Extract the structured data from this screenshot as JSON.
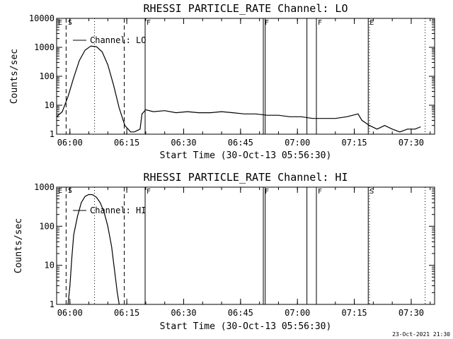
{
  "chart_data": [
    {
      "type": "line",
      "title": "RHESSI PARTICLE_RATE Channel: LO",
      "xlabel": "Start Time (30-Oct-13 05:56:30)",
      "ylabel": "Counts/sec",
      "yscale": "log",
      "xlim": [
        "05:56:30",
        "07:36:10"
      ],
      "ylim": [
        1,
        10000
      ],
      "x_ticks": [
        "06:00",
        "06:15",
        "06:30",
        "06:45",
        "07:00",
        "07:15",
        "07:30"
      ],
      "y_ticks": [
        "1",
        "10",
        "100",
        "1000",
        "10000"
      ],
      "legend": {
        "placement": "top-left",
        "entries": [
          "Channel: LO"
        ]
      },
      "grid": false,
      "series": [
        {
          "name": "Channel: LO",
          "x": [
            "05:56:30",
            "05:58:00",
            "05:59:30",
            "06:01:00",
            "06:02:30",
            "06:04:00",
            "06:05:30",
            "06:07:00",
            "06:08:30",
            "06:10:00",
            "06:11:30",
            "06:13:00",
            "06:14:30",
            "06:16:00",
            "06:17:00",
            "06:18:30",
            "06:19:00",
            "06:20:00",
            "06:22:00",
            "06:25:00",
            "06:28:00",
            "06:31:00",
            "06:34:00",
            "06:37:00",
            "06:40:00",
            "06:43:00",
            "06:46:00",
            "06:49:00",
            "06:52:00",
            "06:55:00",
            "06:58:00",
            "07:01:00",
            "07:04:00",
            "07:07:00",
            "07:10:00",
            "07:13:00",
            "07:16:00",
            "07:17:00",
            "07:19:00",
            "07:21:00",
            "07:23:00",
            "07:25:00",
            "07:27:00",
            "07:29:00",
            "07:31:00",
            "07:32:30"
          ],
          "y": [
            4,
            6,
            20,
            90,
            350,
            800,
            1100,
            1050,
            700,
            250,
            50,
            8,
            2,
            1.2,
            1.2,
            1.5,
            5,
            7,
            6,
            6.5,
            5.5,
            6,
            5.5,
            5.5,
            6,
            5.5,
            5,
            5,
            4.5,
            4.5,
            4,
            4,
            3.5,
            3.5,
            3.5,
            4,
            5,
            3,
            2,
            1.5,
            2,
            1.5,
            1.2,
            1.5,
            1.5,
            1.8
          ]
        }
      ],
      "event_marks": [
        {
          "time": "05:59:00",
          "style": "dashed",
          "label": ""
        },
        {
          "time": "06:06:30",
          "style": "dotted",
          "label": ""
        },
        {
          "time": "06:14:20",
          "style": "dashed",
          "label": ""
        },
        {
          "time": "06:19:50",
          "style": "solid",
          "label": "F"
        },
        {
          "time": "06:51:00",
          "style": "solid",
          "label": "F"
        },
        {
          "time": "06:51:30",
          "style": "solid",
          "label": ""
        },
        {
          "time": "07:02:30",
          "style": "solid",
          "label": ""
        },
        {
          "time": "07:05:00",
          "style": "solid",
          "label": "F"
        },
        {
          "time": "07:18:40",
          "style": "solid",
          "label": "E"
        },
        {
          "time": "07:19:00",
          "style": "dotted",
          "label": ""
        },
        {
          "time": "07:33:40",
          "style": "dotted",
          "label": ""
        }
      ],
      "corner_flags": [
        "E",
        "S"
      ]
    },
    {
      "type": "line",
      "title": "RHESSI PARTICLE_RATE Channel: HI",
      "xlabel": "Start Time (30-Oct-13 05:56:30)",
      "ylabel": "Counts/sec",
      "yscale": "log",
      "xlim": [
        "05:56:30",
        "07:36:10"
      ],
      "ylim": [
        1,
        1000
      ],
      "x_ticks": [
        "06:00",
        "06:15",
        "06:30",
        "06:45",
        "07:00",
        "07:15",
        "07:30"
      ],
      "y_ticks": [
        "1",
        "10",
        "100",
        "1000"
      ],
      "legend": {
        "placement": "top-left",
        "entries": [
          "Channel: HI"
        ]
      },
      "grid": false,
      "series": [
        {
          "name": "Channel: HI",
          "x": [
            "05:59:30",
            "06:00:00",
            "06:00:30",
            "06:01:00",
            "06:02:00",
            "06:03:00",
            "06:04:00",
            "06:05:00",
            "06:06:00",
            "06:07:00",
            "06:08:00",
            "06:09:00",
            "06:10:00",
            "06:11:00",
            "06:12:00",
            "06:12:30",
            "06:13:00"
          ],
          "y": [
            1,
            3,
            15,
            60,
            180,
            400,
            580,
            650,
            640,
            550,
            400,
            230,
            100,
            30,
            5,
            2,
            1
          ]
        }
      ],
      "event_marks": [
        {
          "time": "05:59:00",
          "style": "dashed",
          "label": ""
        },
        {
          "time": "06:06:30",
          "style": "dotted",
          "label": ""
        },
        {
          "time": "06:14:20",
          "style": "dashed",
          "label": ""
        },
        {
          "time": "06:19:50",
          "style": "solid",
          "label": "F"
        },
        {
          "time": "06:51:00",
          "style": "solid",
          "label": "F"
        },
        {
          "time": "06:51:30",
          "style": "solid",
          "label": ""
        },
        {
          "time": "07:02:30",
          "style": "solid",
          "label": ""
        },
        {
          "time": "07:05:00",
          "style": "solid",
          "label": "F"
        },
        {
          "time": "07:18:40",
          "style": "solid",
          "label": "S"
        },
        {
          "time": "07:19:00",
          "style": "dotted",
          "label": ""
        },
        {
          "time": "07:33:40",
          "style": "dotted",
          "label": ""
        }
      ],
      "corner_flags": [
        "E",
        "S"
      ]
    }
  ],
  "footer": {
    "timestamp": "23-Oct-2021 21:30"
  }
}
